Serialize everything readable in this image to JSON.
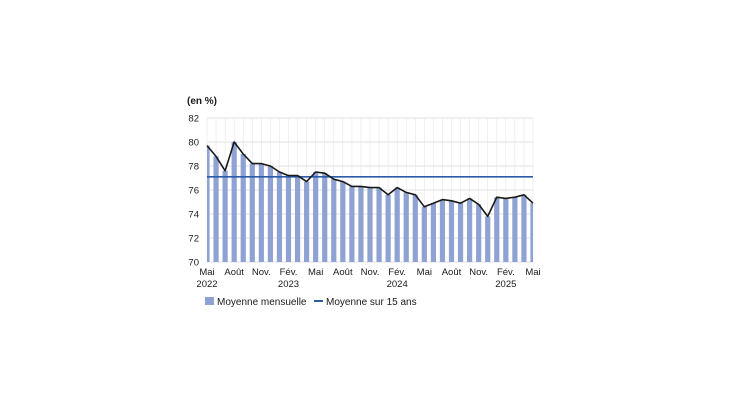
{
  "chart_data": {
    "type": "bar",
    "unit_label": "(en %)",
    "ylim": [
      70,
      82
    ],
    "yticks": [
      70,
      72,
      74,
      76,
      78,
      80,
      82
    ],
    "grid": true,
    "legend_position": "bottom-left",
    "x": [
      "2022-05",
      "2022-06",
      "2022-07",
      "2022-08",
      "2022-09",
      "2022-10",
      "2022-11",
      "2022-12",
      "2023-01",
      "2023-02",
      "2023-03",
      "2023-04",
      "2023-05",
      "2023-06",
      "2023-07",
      "2023-08",
      "2023-09",
      "2023-10",
      "2023-11",
      "2023-12",
      "2024-01",
      "2024-02",
      "2024-03",
      "2024-04",
      "2024-05",
      "2024-06",
      "2024-07",
      "2024-08",
      "2024-09",
      "2024-10",
      "2024-11",
      "2024-12",
      "2025-01",
      "2025-02",
      "2025-03",
      "2025-04",
      "2025-05"
    ],
    "xtick_labels": [
      {
        "index": 0,
        "line1": "Mai",
        "line2": "2022"
      },
      {
        "index": 3,
        "line1": "Août",
        "line2": ""
      },
      {
        "index": 6,
        "line1": "Nov.",
        "line2": ""
      },
      {
        "index": 9,
        "line1": "Fév.",
        "line2": "2023"
      },
      {
        "index": 12,
        "line1": "Mai",
        "line2": ""
      },
      {
        "index": 15,
        "line1": "Août",
        "line2": ""
      },
      {
        "index": 18,
        "line1": "Nov.",
        "line2": ""
      },
      {
        "index": 21,
        "line1": "Fév.",
        "line2": "2024"
      },
      {
        "index": 24,
        "line1": "Mai",
        "line2": ""
      },
      {
        "index": 27,
        "line1": "Août",
        "line2": ""
      },
      {
        "index": 30,
        "line1": "Nov.",
        "line2": ""
      },
      {
        "index": 33,
        "line1": "Fév.",
        "line2": "2025"
      },
      {
        "index": 36,
        "line1": "Mai",
        "line2": ""
      }
    ],
    "series": [
      {
        "name": "Moyenne mensuelle",
        "type": "bar+line",
        "bar_color": "#8ea3d3",
        "line_color": "#1a1a1a",
        "values": [
          79.7,
          78.8,
          77.6,
          80.0,
          79.0,
          78.2,
          78.2,
          78.0,
          77.5,
          77.2,
          77.2,
          76.7,
          77.5,
          77.4,
          76.9,
          76.7,
          76.3,
          76.3,
          76.2,
          76.2,
          75.6,
          76.2,
          75.8,
          75.6,
          74.6,
          74.9,
          75.2,
          75.1,
          74.9,
          75.3,
          74.8,
          73.8,
          75.4,
          75.3,
          75.4,
          75.6,
          74.9
        ]
      },
      {
        "name": "Moyenne sur 15 ans",
        "type": "hline",
        "color": "#2a5caa",
        "value": 77.1
      }
    ]
  }
}
